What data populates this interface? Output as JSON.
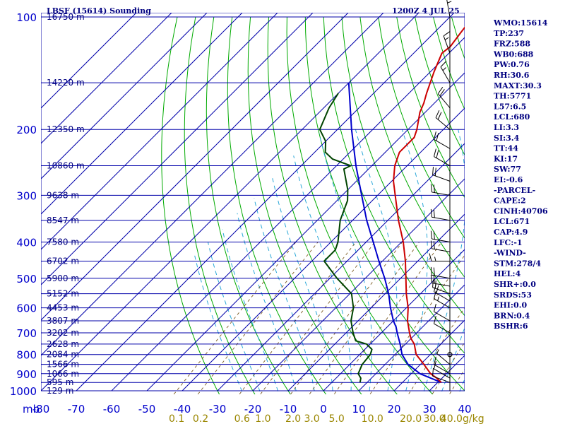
{
  "chart_data": {
    "type": "skew-t sounding",
    "title": "LBSF (15614) Sounding",
    "valid_time": "1200Z  4 JUL 25",
    "pressure_unit_label": "mb",
    "mixing_ratio_unit_label": "g/kg",
    "pressure_range_mb": [
      1000,
      100
    ],
    "temperature_range_c": [
      -80,
      40
    ],
    "pressure_levels": [
      100,
      150,
      200,
      250,
      300,
      350,
      400,
      450,
      500,
      550,
      600,
      650,
      700,
      750,
      800,
      850,
      900,
      950,
      1000
    ],
    "pressure_tick_labels": [
      {
        "p": 100,
        "label": "100"
      },
      {
        "p": 200,
        "label": "200"
      },
      {
        "p": 300,
        "label": "300"
      },
      {
        "p": 400,
        "label": "400"
      },
      {
        "p": 500,
        "label": "500"
      },
      {
        "p": 600,
        "label": "600"
      },
      {
        "p": 700,
        "label": "700"
      },
      {
        "p": 800,
        "label": "800"
      },
      {
        "p": 900,
        "label": "900"
      },
      {
        "p": 1000,
        "label": "1000"
      }
    ],
    "height_labels": [
      {
        "p": 100,
        "label": "16750 m"
      },
      {
        "p": 150,
        "label": "14220 m"
      },
      {
        "p": 200,
        "label": "12350 m"
      },
      {
        "p": 250,
        "label": "10860 m"
      },
      {
        "p": 300,
        "label": "9638 m"
      },
      {
        "p": 350,
        "label": "8547 m"
      },
      {
        "p": 400,
        "label": "7580 m"
      },
      {
        "p": 450,
        "label": "6702 m"
      },
      {
        "p": 500,
        "label": "5900 m"
      },
      {
        "p": 550,
        "label": "5152 m"
      },
      {
        "p": 600,
        "label": "4453 m"
      },
      {
        "p": 650,
        "label": "3807 m"
      },
      {
        "p": 700,
        "label": "3202 m"
      },
      {
        "p": 750,
        "label": "2628 m"
      },
      {
        "p": 800,
        "label": "2084 m"
      },
      {
        "p": 850,
        "label": "1566 m"
      },
      {
        "p": 900,
        "label": "1066 m"
      },
      {
        "p": 950,
        "label": "595 m"
      },
      {
        "p": 1000,
        "label": "129 m"
      }
    ],
    "temperature_ticks": [
      {
        "t": -80,
        "label": "-80"
      },
      {
        "t": -70,
        "label": "-70"
      },
      {
        "t": -60,
        "label": "-60"
      },
      {
        "t": -50,
        "label": "-50"
      },
      {
        "t": -40,
        "label": "-40"
      },
      {
        "t": -30,
        "label": "-30"
      },
      {
        "t": -20,
        "label": "-20"
      },
      {
        "t": -10,
        "label": "-10"
      },
      {
        "t": 0,
        "label": "0"
      },
      {
        "t": 10,
        "label": "10"
      },
      {
        "t": 20,
        "label": "20"
      },
      {
        "t": 30,
        "label": "30"
      },
      {
        "t": 40,
        "label": "40"
      }
    ],
    "mixing_ratio_labels": [
      {
        "w": 0.1,
        "label": "0.1"
      },
      {
        "w": 0.2,
        "label": "0.2"
      },
      {
        "w": 0.6,
        "label": "0.6"
      },
      {
        "w": 1.0,
        "label": "1.0"
      },
      {
        "w": 2.0,
        "label": "2.0"
      },
      {
        "w": 3.0,
        "label": "3.0"
      },
      {
        "w": 5.0,
        "label": "5.0"
      },
      {
        "w": 10.0,
        "label": "10.0"
      },
      {
        "w": 20.0,
        "label": "20.0"
      },
      {
        "w": 30.0,
        "label": "30.0"
      },
      {
        "w": 40.0,
        "label": "40.0"
      }
    ],
    "temperature_profile": [
      {
        "p": 950,
        "t": 31.0
      },
      {
        "p": 925,
        "t": 28.5
      },
      {
        "p": 900,
        "t": 25.5
      },
      {
        "p": 850,
        "t": 21.0
      },
      {
        "p": 800,
        "t": 16.0
      },
      {
        "p": 750,
        "t": 12.5
      },
      {
        "p": 725,
        "t": 10.0
      },
      {
        "p": 700,
        "t": 8.0
      },
      {
        "p": 650,
        "t": 4.0
      },
      {
        "p": 600,
        "t": 0.5
      },
      {
        "p": 550,
        "t": -4.0
      },
      {
        "p": 500,
        "t": -8.5
      },
      {
        "p": 450,
        "t": -13.5
      },
      {
        "p": 400,
        "t": -19.5
      },
      {
        "p": 350,
        "t": -27.0
      },
      {
        "p": 300,
        "t": -35.0
      },
      {
        "p": 275,
        "t": -39.5
      },
      {
        "p": 250,
        "t": -43.5
      },
      {
        "p": 230,
        "t": -46.0
      },
      {
        "p": 210,
        "t": -46.0
      },
      {
        "p": 200,
        "t": -47.5
      },
      {
        "p": 180,
        "t": -51.5
      },
      {
        "p": 170,
        "t": -53.0
      },
      {
        "p": 160,
        "t": -55.0
      },
      {
        "p": 140,
        "t": -59.0
      },
      {
        "p": 125,
        "t": -62.0
      },
      {
        "p": 120,
        "t": -61.5
      },
      {
        "p": 110,
        "t": -62.5
      },
      {
        "p": 100,
        "t": -63.5
      }
    ],
    "dewpoint_profile": [
      {
        "p": 950,
        "t": 8.0
      },
      {
        "p": 925,
        "t": 7.0
      },
      {
        "p": 900,
        "t": 5.0
      },
      {
        "p": 850,
        "t": 3.5
      },
      {
        "p": 800,
        "t": 3.0
      },
      {
        "p": 775,
        "t": 2.0
      },
      {
        "p": 750,
        "t": -1.0
      },
      {
        "p": 735,
        "t": -5.0
      },
      {
        "p": 700,
        "t": -8.0
      },
      {
        "p": 650,
        "t": -12.0
      },
      {
        "p": 600,
        "t": -15.0
      },
      {
        "p": 550,
        "t": -19.5
      },
      {
        "p": 500,
        "t": -28.0
      },
      {
        "p": 450,
        "t": -36.5
      },
      {
        "p": 420,
        "t": -36.5
      },
      {
        "p": 400,
        "t": -38.0
      },
      {
        "p": 350,
        "t": -43.5
      },
      {
        "p": 310,
        "t": -47.0
      },
      {
        "p": 290,
        "t": -50.0
      },
      {
        "p": 255,
        "t": -57.0
      },
      {
        "p": 250,
        "t": -56.0
      },
      {
        "p": 240,
        "t": -63.0
      },
      {
        "p": 230,
        "t": -67.0
      },
      {
        "p": 215,
        "t": -70.0
      },
      {
        "p": 200,
        "t": -75.0
      },
      {
        "p": 175,
        "t": -78.5
      },
      {
        "p": 160,
        "t": -80.0
      }
    ],
    "parcel_profile": [
      {
        "p": 950,
        "t": 31.0
      },
      {
        "p": 900,
        "t": 22.5
      },
      {
        "p": 850,
        "t": 16.5
      },
      {
        "p": 800,
        "t": 12.0
      },
      {
        "p": 750,
        "t": 8.5
      },
      {
        "p": 700,
        "t": 4.5
      },
      {
        "p": 675,
        "t": 2.5
      },
      {
        "p": 650,
        "t": 0.0
      },
      {
        "p": 600,
        "t": -4.5
      },
      {
        "p": 550,
        "t": -9.0
      },
      {
        "p": 500,
        "t": -14.5
      },
      {
        "p": 450,
        "t": -21.0
      },
      {
        "p": 400,
        "t": -28.0
      },
      {
        "p": 350,
        "t": -36.0
      },
      {
        "p": 300,
        "t": -44.5
      },
      {
        "p": 250,
        "t": -54.5
      },
      {
        "p": 200,
        "t": -66.0
      },
      {
        "p": 150,
        "t": -80.0
      }
    ],
    "wind_profile": [
      {
        "p": 950,
        "dir": 290,
        "spd": 10
      },
      {
        "p": 925,
        "dir": 300,
        "spd": 10
      },
      {
        "p": 900,
        "dir": 300,
        "spd": 10
      },
      {
        "p": 850,
        "dir": 310,
        "spd": 5
      },
      {
        "p": 800,
        "dir": 0,
        "spd": 0
      },
      {
        "p": 700,
        "dir": 300,
        "spd": 10
      },
      {
        "p": 650,
        "dir": 300,
        "spd": 10
      },
      {
        "p": 600,
        "dir": 300,
        "spd": 15
      },
      {
        "p": 575,
        "dir": 300,
        "spd": 20
      },
      {
        "p": 550,
        "dir": 290,
        "spd": 20
      },
      {
        "p": 525,
        "dir": 280,
        "spd": 20
      },
      {
        "p": 500,
        "dir": 280,
        "spd": 20
      },
      {
        "p": 450,
        "dir": 270,
        "spd": 15
      },
      {
        "p": 425,
        "dir": 280,
        "spd": 20
      },
      {
        "p": 400,
        "dir": 280,
        "spd": 20
      },
      {
        "p": 350,
        "dir": 280,
        "spd": 20
      },
      {
        "p": 300,
        "dir": 280,
        "spd": 20
      },
      {
        "p": 275,
        "dir": 290,
        "spd": 20
      },
      {
        "p": 250,
        "dir": 300,
        "spd": 20
      },
      {
        "p": 225,
        "dir": 300,
        "spd": 20
      },
      {
        "p": 200,
        "dir": 310,
        "spd": 20
      },
      {
        "p": 175,
        "dir": 320,
        "spd": 20
      },
      {
        "p": 150,
        "dir": 330,
        "spd": 15
      },
      {
        "p": 125,
        "dir": 340,
        "spd": 15
      },
      {
        "p": 100,
        "dir": 350,
        "spd": 15
      }
    ],
    "indices": [
      "WMO:15614",
      "TP:237",
      "FRZ:588",
      "WB0:688",
      "PW:0.76",
      "RH:30.6",
      "MAXT:30.3",
      "TH:5771",
      "L57:6.5",
      "LCL:680",
      "LI:3.3",
      "SI:3.4",
      "TT:44",
      "KI:17",
      "SW:77",
      "EI:-0.6",
      "-PARCEL-",
      "CAPE:2",
      "CINH:40706",
      "LCL:671",
      "CAP:4.9",
      "LFC:-1",
      "-WIND-",
      "STM:278/4",
      "HEL:4",
      "SHR+:0.0",
      "SRDS:53",
      "EHI:0.0",
      "BRN:0.4",
      "BSHR:6"
    ],
    "colors": {
      "background": "#ffffff",
      "isobar": "#0000aa",
      "isotherm": "#0000aa",
      "dry_adiabat": "#00aa00",
      "moist_adiabat": "#2aa8d8",
      "mixing_ratio": "#7a5a20",
      "temperature": "#cc0000",
      "dewpoint": "#004400",
      "parcel": "#0000cc",
      "text": "#000080",
      "wind_barb": "#000000"
    }
  }
}
